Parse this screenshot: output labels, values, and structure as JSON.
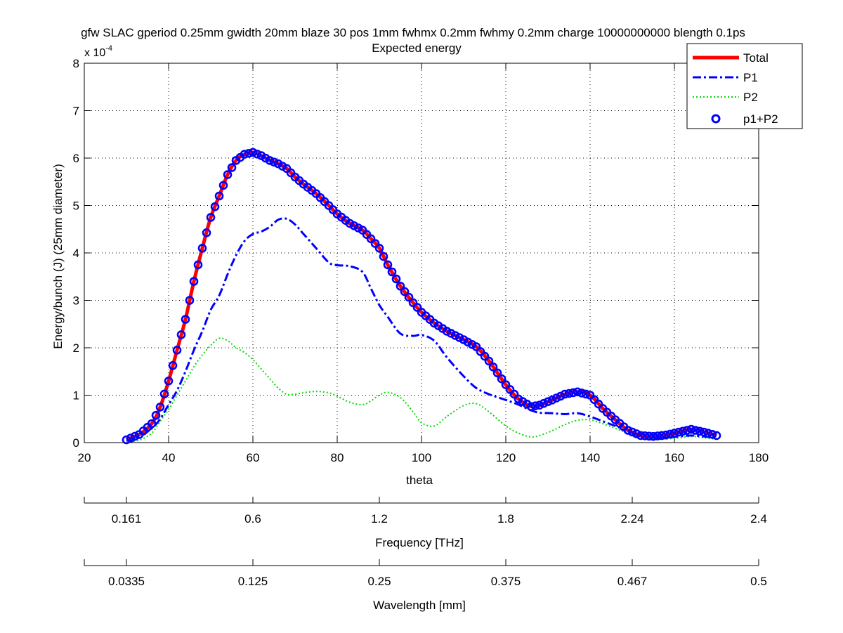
{
  "chart_data": {
    "type": "line",
    "title": "gfw SLAC gperiod 0.25mm gwidth 20mm blaze 30 pos 1mm fwhmx 0.2mm fwhmy 0.2mm charge 10000000000 blength 0.1ps",
    "subtitle": "Expected energy",
    "xlabel": "theta",
    "ylabel": "Energy/bunch (J) (25mm diameter)",
    "y_exponent_label": "x 10",
    "y_exponent_power": "-4",
    "xlim": [
      20,
      180
    ],
    "ylim": [
      0,
      8
    ],
    "y_scale_factor": 0.0001,
    "x_ticks": [
      "20",
      "40",
      "60",
      "80",
      "100",
      "120",
      "140",
      "160",
      "180"
    ],
    "y_ticks": [
      "0",
      "1",
      "2",
      "3",
      "4",
      "5",
      "6",
      "7",
      "8"
    ],
    "grid": true,
    "legend_position": "top-right",
    "series": [
      {
        "name": "Total",
        "color": "#ff0000",
        "style": "solid",
        "x": [
          30,
          33,
          36,
          38,
          40,
          42,
          44,
          46,
          48,
          50,
          52,
          54,
          56,
          58,
          60,
          62,
          64,
          66,
          68,
          70,
          72,
          75,
          78,
          80,
          83,
          86,
          88,
          90,
          92,
          95,
          98,
          100,
          103,
          106,
          110,
          113,
          116,
          120,
          123,
          126,
          128,
          131,
          134,
          137,
          140,
          143,
          146,
          149,
          152,
          155,
          158,
          161,
          164,
          167,
          170
        ],
        "y": [
          0.06,
          0.17,
          0.4,
          0.75,
          1.3,
          1.95,
          2.6,
          3.4,
          4.1,
          4.75,
          5.2,
          5.65,
          5.95,
          6.08,
          6.12,
          6.05,
          5.95,
          5.88,
          5.78,
          5.6,
          5.45,
          5.25,
          5.0,
          4.82,
          4.62,
          4.48,
          4.3,
          4.1,
          3.75,
          3.3,
          2.95,
          2.75,
          2.52,
          2.35,
          2.17,
          2.02,
          1.72,
          1.22,
          0.92,
          0.76,
          0.79,
          0.9,
          1.02,
          1.07,
          1.0,
          0.72,
          0.48,
          0.26,
          0.15,
          0.13,
          0.16,
          0.22,
          0.28,
          0.22,
          0.15
        ]
      },
      {
        "name": "P1",
        "color": "#0000ff",
        "style": "dash-dot",
        "x": [
          30,
          33,
          36,
          38,
          40,
          42,
          44,
          46,
          48,
          50,
          52,
          54,
          56,
          58,
          60,
          62,
          64,
          66,
          68,
          70,
          72,
          75,
          78,
          80,
          83,
          86,
          88,
          90,
          92,
          95,
          98,
          100,
          103,
          106,
          110,
          113,
          116,
          120,
          123,
          126,
          128,
          131,
          134,
          137,
          140,
          143,
          146,
          149,
          152,
          155,
          158,
          161,
          164,
          167,
          170
        ],
        "y": [
          0.04,
          0.12,
          0.3,
          0.5,
          0.8,
          1.1,
          1.5,
          1.95,
          2.35,
          2.8,
          3.1,
          3.55,
          3.95,
          4.25,
          4.4,
          4.45,
          4.55,
          4.7,
          4.72,
          4.6,
          4.4,
          4.1,
          3.8,
          3.74,
          3.72,
          3.6,
          3.25,
          2.9,
          2.65,
          2.3,
          2.25,
          2.27,
          2.15,
          1.8,
          1.4,
          1.15,
          1.02,
          0.9,
          0.8,
          0.68,
          0.63,
          0.62,
          0.6,
          0.62,
          0.55,
          0.45,
          0.35,
          0.25,
          0.15,
          0.1,
          0.1,
          0.13,
          0.15,
          0.13,
          0.1
        ]
      },
      {
        "name": "P2",
        "color": "#00dd00",
        "style": "dotted",
        "x": [
          30,
          33,
          36,
          38,
          40,
          42,
          44,
          46,
          48,
          50,
          52,
          54,
          56,
          58,
          60,
          62,
          64,
          66,
          68,
          70,
          72,
          75,
          78,
          80,
          83,
          86,
          88,
          90,
          92,
          95,
          98,
          100,
          103,
          106,
          110,
          113,
          116,
          120,
          123,
          126,
          128,
          131,
          134,
          137,
          140,
          143,
          146,
          149,
          152,
          155,
          158,
          161,
          164,
          167,
          170
        ],
        "y": [
          0.02,
          0.05,
          0.2,
          0.45,
          0.7,
          1.0,
          1.3,
          1.6,
          1.85,
          2.05,
          2.2,
          2.15,
          2.0,
          1.9,
          1.75,
          1.55,
          1.35,
          1.15,
          1.02,
          1.02,
          1.05,
          1.08,
          1.05,
          0.98,
          0.85,
          0.8,
          0.88,
          1.0,
          1.06,
          0.95,
          0.65,
          0.42,
          0.35,
          0.55,
          0.78,
          0.82,
          0.65,
          0.35,
          0.2,
          0.12,
          0.15,
          0.25,
          0.38,
          0.47,
          0.48,
          0.4,
          0.3,
          0.2,
          0.12,
          0.08,
          0.08,
          0.1,
          0.13,
          0.1,
          0.07
        ]
      },
      {
        "name": "p1+P2",
        "color": "#0000ff",
        "style": "markers"
      }
    ],
    "secondary_axes": [
      {
        "label": "Frequency [THz]",
        "tick_labels": [
          "0.161",
          "0.6",
          "1.2",
          "1.8",
          "2.24",
          "2.4"
        ]
      },
      {
        "label": "Wavelength [mm]",
        "tick_labels": [
          "0.0335",
          "0.125",
          "0.25",
          "0.375",
          "0.467",
          "0.5"
        ]
      }
    ]
  }
}
